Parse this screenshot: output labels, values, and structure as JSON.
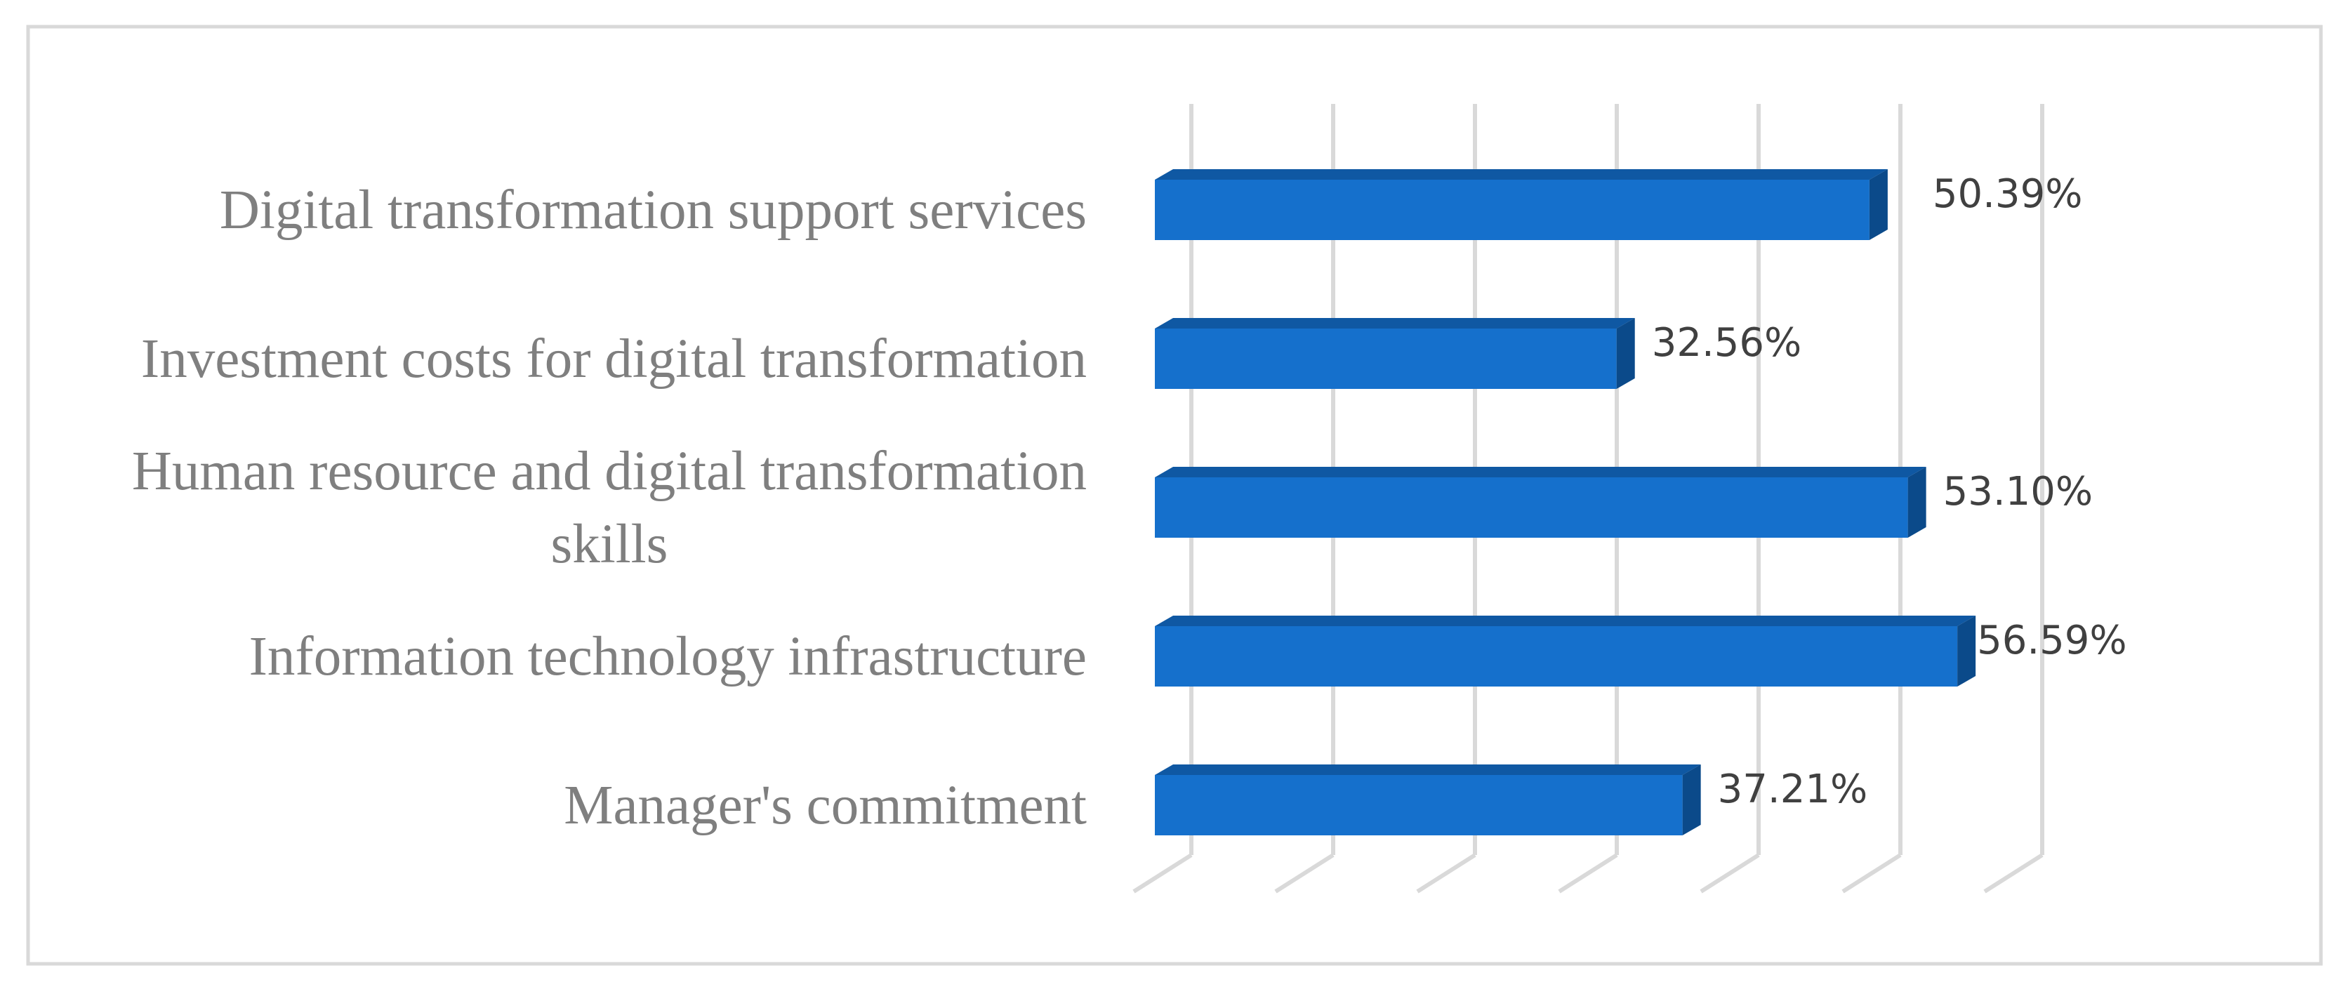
{
  "chart_data": {
    "type": "bar",
    "orientation": "horizontal",
    "style": "3d",
    "title": "",
    "xlabel": "",
    "ylabel": "",
    "xlim": [
      0,
      60
    ],
    "grid": true,
    "legend": "none",
    "bar_color": "#1570CC",
    "bar_top_color": "#0F58A3",
    "bar_side_color": "#0B4A8A",
    "grid_color": "#D9D9D9",
    "frame_color": "#D9D9D9",
    "categories": [
      {
        "lines": [
          "Digital transformation support services"
        ]
      },
      {
        "lines": [
          "Investment costs for digital transformation"
        ]
      },
      {
        "lines": [
          "Human resource and digital transformation",
          "skills"
        ]
      },
      {
        "lines": [
          "Information technology infrastructure"
        ]
      },
      {
        "lines": [
          "Manager's commitment"
        ]
      }
    ],
    "values": [
      50.39,
      32.56,
      53.1,
      56.59,
      37.21
    ],
    "value_labels": [
      "50.39%",
      "32.56%",
      "53.10%",
      "56.59%",
      "37.21%"
    ]
  }
}
